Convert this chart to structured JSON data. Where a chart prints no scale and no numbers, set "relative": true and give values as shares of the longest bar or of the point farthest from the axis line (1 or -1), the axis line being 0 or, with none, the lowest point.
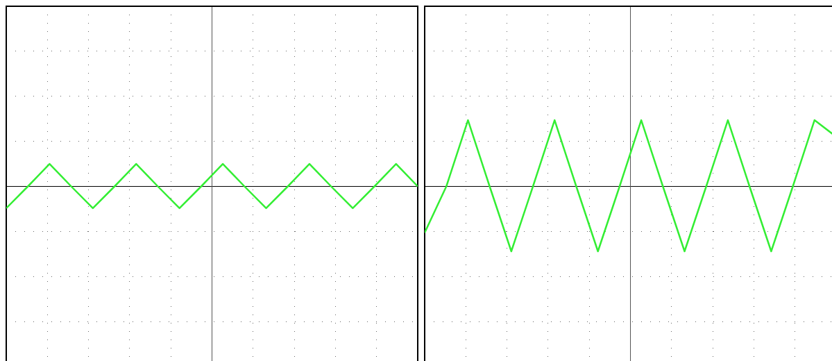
{
  "chart_data": [
    {
      "type": "line",
      "relative": true,
      "grid": true,
      "legend": false,
      "marker": "none",
      "line_style": "solid",
      "categories": [
        null,
        null,
        null,
        null,
        null,
        null,
        null,
        null,
        null,
        null,
        null,
        null,
        null,
        null,
        null,
        null,
        null,
        null,
        null,
        null
      ],
      "series": [
        {
          "color": "#33ee33",
          "values": [
            -0.97,
            0,
            1,
            0,
            -0.97,
            0,
            1,
            0,
            -0.97,
            0,
            1,
            0,
            -0.97,
            0,
            1,
            0,
            -0.97,
            0,
            1,
            0
          ]
        }
      ]
    },
    {
      "type": "line",
      "relative": true,
      "grid": true,
      "legend": false,
      "marker": "none",
      "line_style": "solid",
      "categories": [
        null,
        null,
        null,
        null,
        null,
        null,
        null,
        null,
        null,
        null,
        null,
        null,
        null,
        null,
        null,
        null,
        null,
        null,
        null,
        null
      ],
      "series": [
        {
          "color": "#33ee33",
          "values": [
            -0.7,
            0,
            1,
            0,
            -0.98,
            0,
            1,
            0,
            -0.98,
            0,
            1,
            0,
            -0.98,
            0,
            1,
            0,
            -0.98,
            0,
            1,
            0.75
          ]
        }
      ]
    }
  ]
}
